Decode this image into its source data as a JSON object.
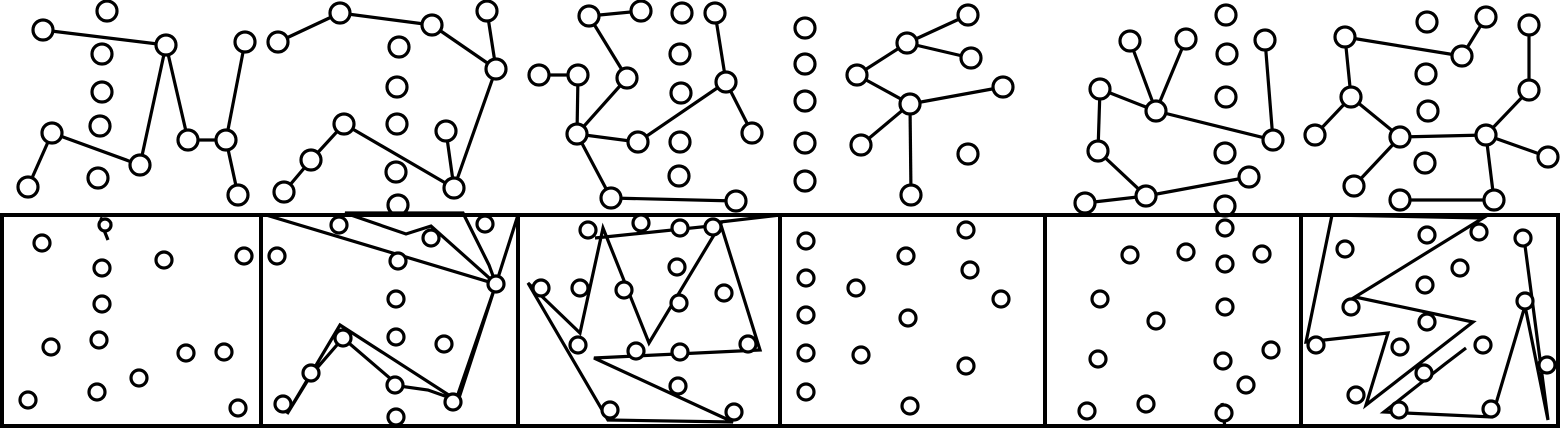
{
  "figure": {
    "background": "#ffffff",
    "ink": "#000000",
    "panel_count": 6,
    "rows": [
      "graphs",
      "boxed-point-sets"
    ]
  }
}
